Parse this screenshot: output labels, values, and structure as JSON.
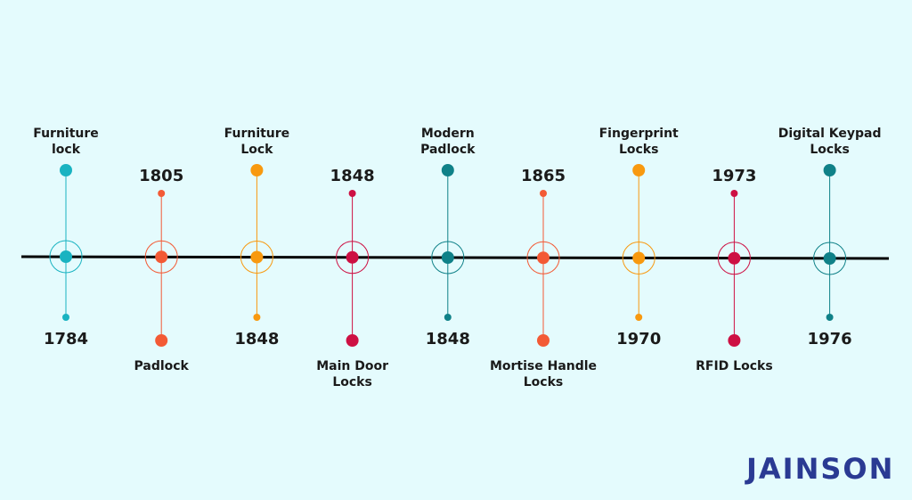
{
  "events": [
    {
      "name": "Furniture\nlock",
      "year": "1784",
      "color": "#19b3c1",
      "name_pos": "top"
    },
    {
      "name": "Padlock",
      "year": "1805",
      "color": "#f35a35",
      "name_pos": "bottom"
    },
    {
      "name": "Furniture\nLock",
      "year": "1848",
      "color": "#f8990f",
      "name_pos": "top"
    },
    {
      "name": "Main Door\nLocks",
      "year": "1848",
      "color": "#cd1043",
      "name_pos": "bottom"
    },
    {
      "name": "Modern\nPadlock",
      "year": "1848",
      "color": "#0f8188",
      "name_pos": "top"
    },
    {
      "name": "Mortise Handle\nLocks",
      "year": "1865",
      "color": "#f35a35",
      "name_pos": "bottom"
    },
    {
      "name": "Fingerprint\nLocks",
      "year": "1970",
      "color": "#f8990f",
      "name_pos": "top"
    },
    {
      "name": "RFID Locks",
      "year": "1973",
      "color": "#cd1043",
      "name_pos": "bottom"
    },
    {
      "name": "Digital Keypad\nLocks",
      "year": "1976",
      "color": "#0f8188",
      "name_pos": "top"
    }
  ],
  "logo": {
    "text": "JAINSON",
    "color": "#2a3a93"
  }
}
